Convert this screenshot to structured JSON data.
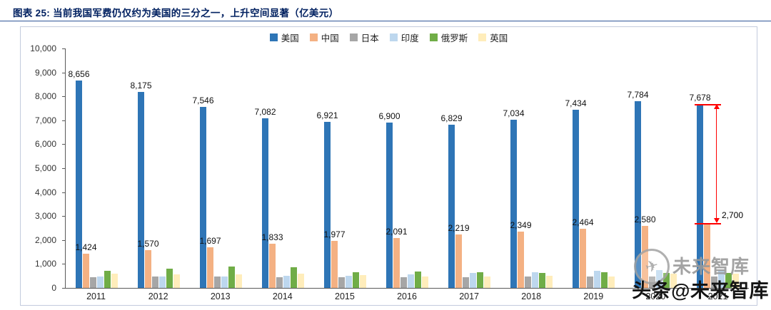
{
  "header": {
    "title": "图表 25:  当前我国军费仍仅约为美国的三分之一，上升空间显著（亿美元）"
  },
  "watermark": {
    "logo_text": "未来智库",
    "byline": "头条@未来智库",
    "plane_icon": "✈"
  },
  "chart_data": {
    "type": "bar",
    "title": "当前我国军费仍仅约为美国的三分之一，上升空间显著（亿美元）",
    "xlabel": "",
    "ylabel": "",
    "unit": "亿美元",
    "grid": false,
    "legend_position": "top",
    "ylim": [
      0,
      10000
    ],
    "ytick_step": 1000,
    "yticks": [
      {
        "label": "10,000",
        "value": 10000
      },
      {
        "label": "9,000",
        "value": 9000
      },
      {
        "label": "8,000",
        "value": 8000
      },
      {
        "label": "7,000",
        "value": 7000
      },
      {
        "label": "6,000",
        "value": 6000
      },
      {
        "label": "5,000",
        "value": 5000
      },
      {
        "label": "4,000",
        "value": 4000
      },
      {
        "label": "3,000",
        "value": 3000
      },
      {
        "label": "2,000",
        "value": 2000
      },
      {
        "label": "1,000",
        "value": 1000
      },
      {
        "label": "0",
        "value": 0
      }
    ],
    "categories": [
      "2011",
      "2012",
      "2013",
      "2014",
      "2015",
      "2016",
      "2017",
      "2018",
      "2019",
      "2020",
      "2021"
    ],
    "series": [
      {
        "id": "us",
        "name": "美国",
        "color": "#2E75B6",
        "values": [
          8656,
          8175,
          7546,
          7082,
          6921,
          6900,
          6829,
          7034,
          7434,
          7784,
          7678
        ],
        "labels": [
          "8,656",
          "8,175",
          "7,546",
          "7,082",
          "6,921",
          "6,900",
          "6,829",
          "7,034",
          "7,434",
          "7,784",
          "7,678"
        ]
      },
      {
        "id": "china",
        "name": "中国",
        "color": "#F4B183",
        "values": [
          1424,
          1570,
          1697,
          1833,
          1977,
          2091,
          2219,
          2349,
          2464,
          2580,
          2700
        ],
        "labels": [
          "1,424",
          "1,570",
          "1,697",
          "1,833",
          "1,977",
          "2,091",
          "2,219",
          "2,349",
          "2,464",
          "2,580",
          null
        ]
      },
      {
        "id": "japan",
        "name": "日本",
        "color": "#A6A6A6",
        "values": [
          460,
          470,
          480,
          460,
          460,
          460,
          450,
          470,
          480,
          490,
          490
        ],
        "labels": null
      },
      {
        "id": "india",
        "name": "印度",
        "color": "#BDD7EE",
        "values": [
          490,
          470,
          470,
          500,
          510,
          560,
          640,
          670,
          710,
          730,
          740
        ],
        "labels": null
      },
      {
        "id": "russia",
        "name": "俄罗斯",
        "color": "#70AD47",
        "values": [
          700,
          810,
          880,
          850,
          660,
          690,
          660,
          620,
          650,
          620,
          630
        ],
        "labels": null
      },
      {
        "id": "uk",
        "name": "英国",
        "color": "#FFEDBB",
        "values": [
          600,
          580,
          570,
          590,
          540,
          480,
          470,
          500,
          490,
          590,
          600
        ],
        "labels": null
      }
    ],
    "annotation": {
      "category": "2021",
      "category_index": 10,
      "from_value": 7678,
      "to_value": 2700,
      "label": "2,700",
      "color": "#FF0000"
    }
  }
}
